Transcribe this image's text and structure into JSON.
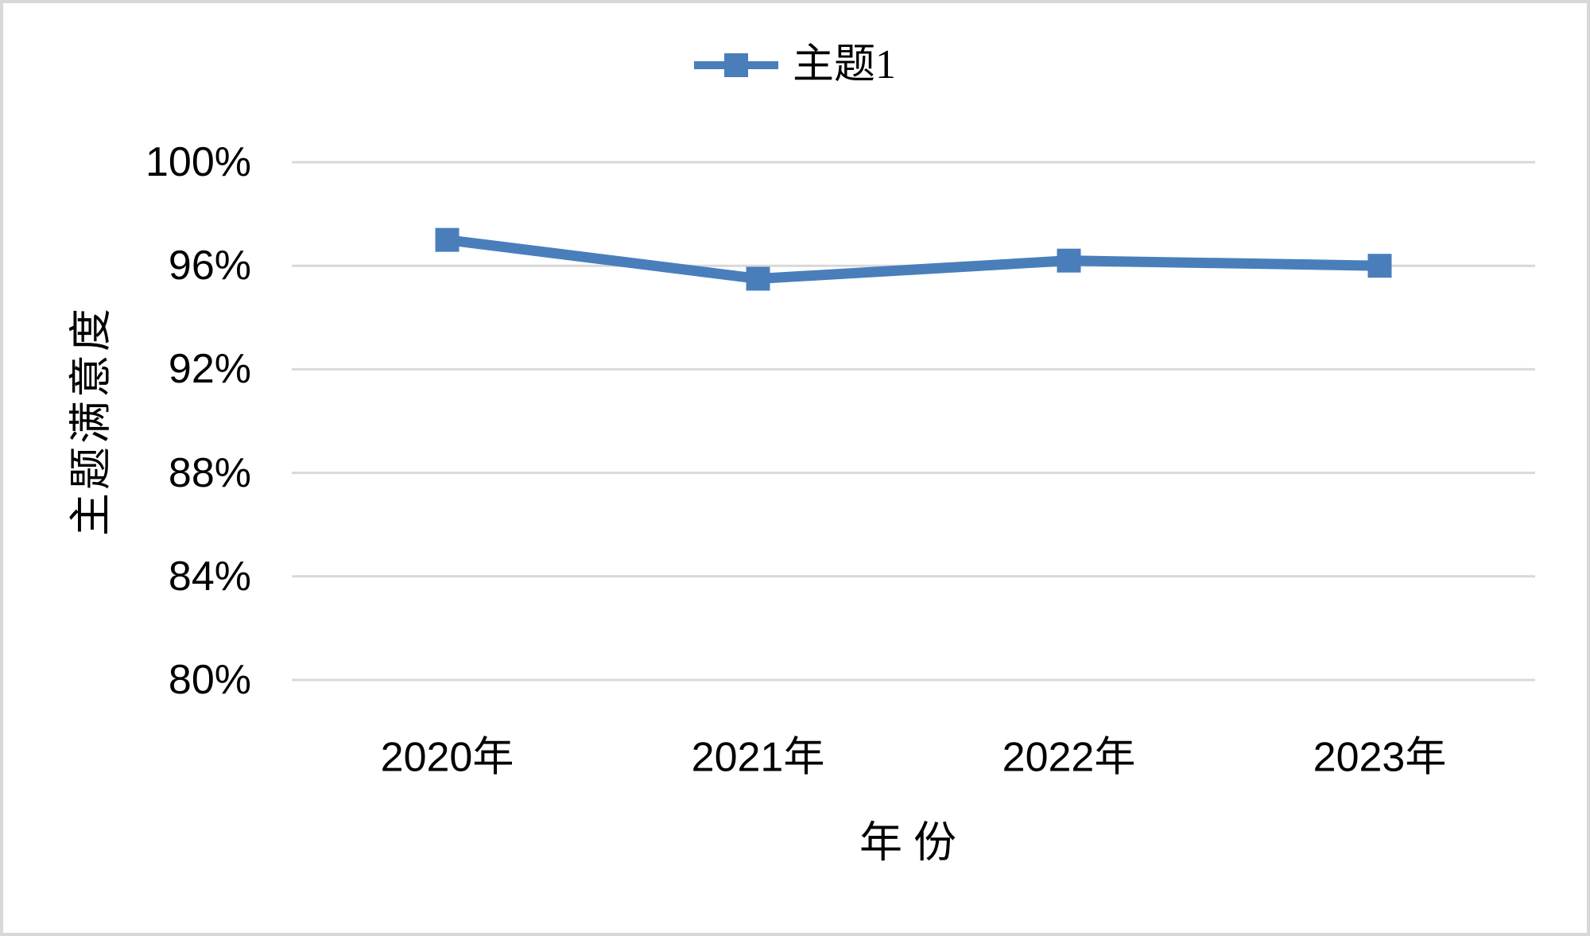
{
  "legend": {
    "label": "主题1"
  },
  "axes": {
    "y_title": "主题满意度",
    "x_title": "年份",
    "y_tick_labels": [
      "100%",
      "96%",
      "92%",
      "88%",
      "84%",
      "80%"
    ],
    "x_tick_labels": [
      "2020年",
      "2021年",
      "2022年",
      "2023年"
    ]
  },
  "colors": {
    "series": "#4A7EBB",
    "gridline": "#D9D9D9",
    "text": "#000000",
    "frame_border": "#D8D8D8"
  },
  "chart_data": {
    "type": "line",
    "title": "",
    "categories": [
      "2020年",
      "2021年",
      "2022年",
      "2023年"
    ],
    "series": [
      {
        "name": "主题1",
        "values": [
          97,
          95.5,
          96.2,
          96
        ]
      }
    ],
    "values_unit": "percent",
    "xlabel": "年份",
    "ylabel": "主题满意度",
    "ylim": [
      80,
      100
    ],
    "ytick_step": 4,
    "ytick_values": [
      100,
      96,
      92,
      88,
      84,
      80
    ],
    "grid": true,
    "legend_position": "top-center",
    "marker": "square",
    "line_color": "#4A7EBB"
  }
}
